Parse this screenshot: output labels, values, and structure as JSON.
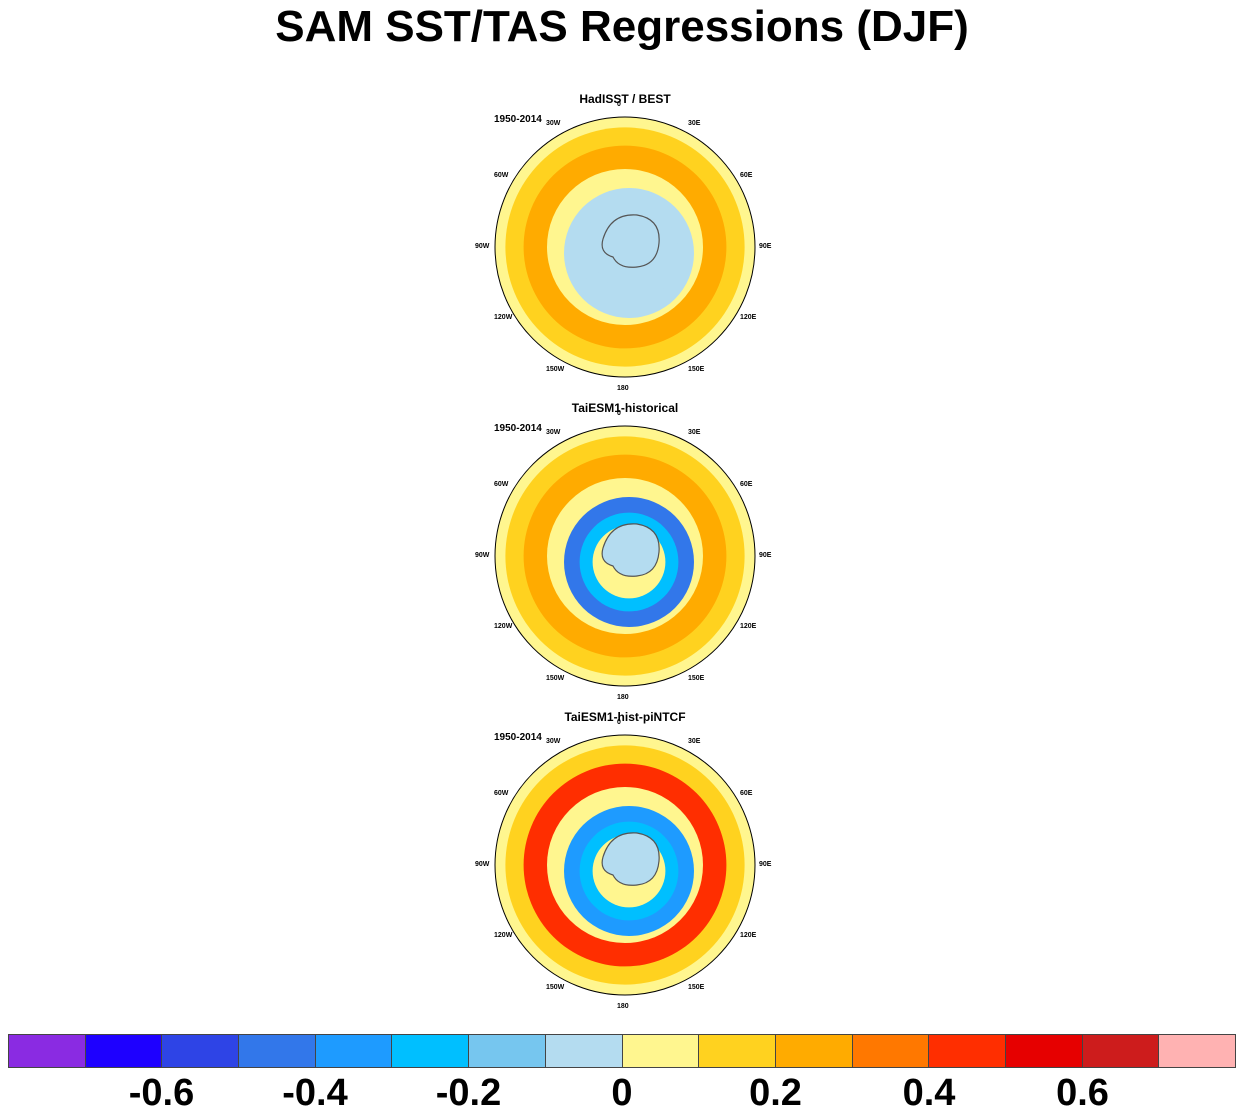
{
  "title": "SAM SST/TAS Regressions (DJF)",
  "chart_data": {
    "type": "heatmap",
    "projection": "south-polar-stereographic",
    "panels": [
      {
        "title": "HadISST / BEST",
        "period": "1950-2014",
        "pattern": {
          "ring_mid": 0.25,
          "ring_inner": -0.1,
          "polar": -0.05
        }
      },
      {
        "title": "TaiESM1-historical",
        "period": "1950-2014",
        "pattern": {
          "ring_mid": 0.25,
          "ring_inner": -0.5,
          "polar": 0.0
        }
      },
      {
        "title": "TaiESM1-hist-piNTCF",
        "period": "1950-2014",
        "pattern": {
          "ring_mid": 0.4,
          "ring_inner": -0.35,
          "polar": 0.0
        }
      }
    ],
    "longitude_labels": [
      "0",
      "30E",
      "60E",
      "90E",
      "120E",
      "150E",
      "180",
      "150W",
      "120W",
      "90W",
      "60W",
      "30W"
    ],
    "colorbar": {
      "colors": [
        "#8a2be2",
        "#1e00ff",
        "#2e44e6",
        "#3277ea",
        "#1e9bff",
        "#00bfff",
        "#76c6ef",
        "#b4dcf0",
        "#fff68f",
        "#ffd21f",
        "#ffab00",
        "#ff7800",
        "#ff2e00",
        "#e60000",
        "#cd1c1c",
        "#ffb2b2"
      ],
      "tick_labels": [
        "-0.6",
        "-0.4",
        "-0.2",
        "0",
        "0.2",
        "0.4",
        "0.6"
      ],
      "tick_values": [
        -0.6,
        -0.4,
        -0.2,
        0,
        0.2,
        0.4,
        0.6
      ],
      "range": [
        -0.8,
        0.8
      ]
    }
  }
}
